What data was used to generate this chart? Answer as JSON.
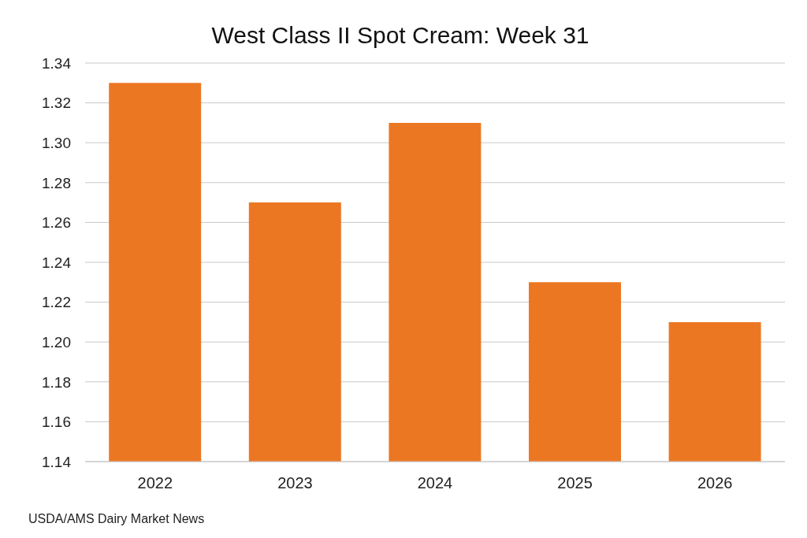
{
  "chart_data": {
    "type": "bar",
    "title": "West Class II Spot Cream: Week 31",
    "categories": [
      "2022",
      "2023",
      "2024",
      "2025",
      "2026"
    ],
    "values": [
      1.33,
      1.27,
      1.31,
      1.23,
      1.21
    ],
    "color": "#ec7723",
    "ylim": [
      1.14,
      1.34
    ],
    "yticks": [
      1.14,
      1.16,
      1.18,
      {
        "value": 1.2,
        "label": "1.20"
      },
      1.22,
      1.24,
      1.26,
      1.28,
      {
        "value": 1.3,
        "label": "1.30"
      },
      1.32,
      1.34
    ],
    "grid": "y",
    "annotations": [
      "USDA/AMS Dairy Market News"
    ]
  }
}
